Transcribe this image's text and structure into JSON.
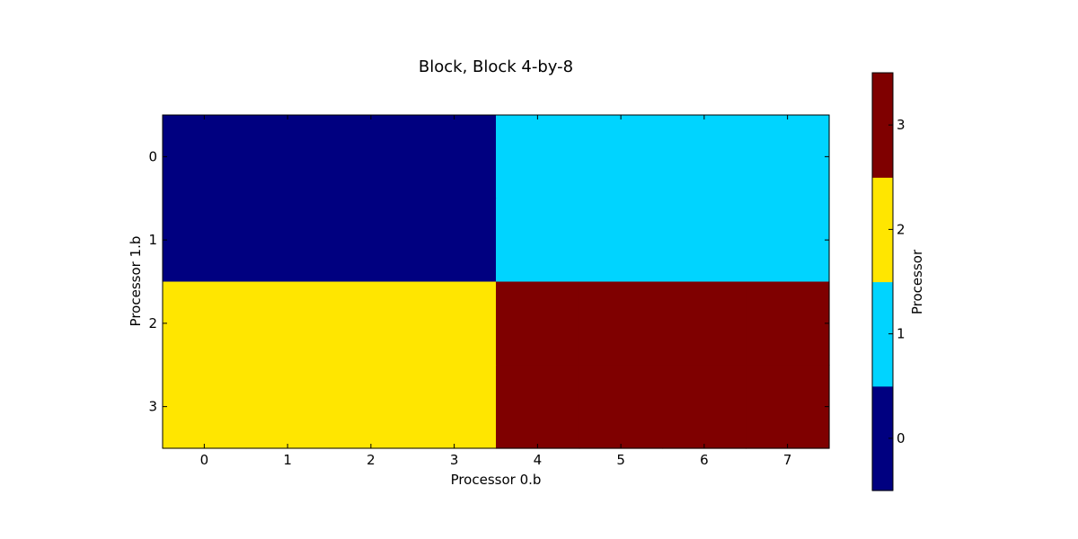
{
  "chart_data": {
    "type": "heatmap",
    "title": "Block, Block 4-by-8",
    "xlabel": "Processor 0.b",
    "ylabel": "Processor 1.b",
    "x_ticks": [
      "0",
      "1",
      "2",
      "3",
      "4",
      "5",
      "6",
      "7"
    ],
    "y_ticks": [
      "0",
      "1",
      "2",
      "3"
    ],
    "values": [
      [
        0,
        0,
        0,
        0,
        1,
        1,
        1,
        1
      ],
      [
        0,
        0,
        0,
        0,
        1,
        1,
        1,
        1
      ],
      [
        2,
        2,
        2,
        2,
        3,
        3,
        3,
        3
      ],
      [
        2,
        2,
        2,
        2,
        3,
        3,
        3,
        3
      ]
    ],
    "colorbar": {
      "label": "Processor",
      "ticks": [
        "0",
        "1",
        "2",
        "3"
      ],
      "colors": [
        "#000080",
        "#00d4ff",
        "#ffe600",
        "#7f0000"
      ]
    },
    "grid": false
  }
}
